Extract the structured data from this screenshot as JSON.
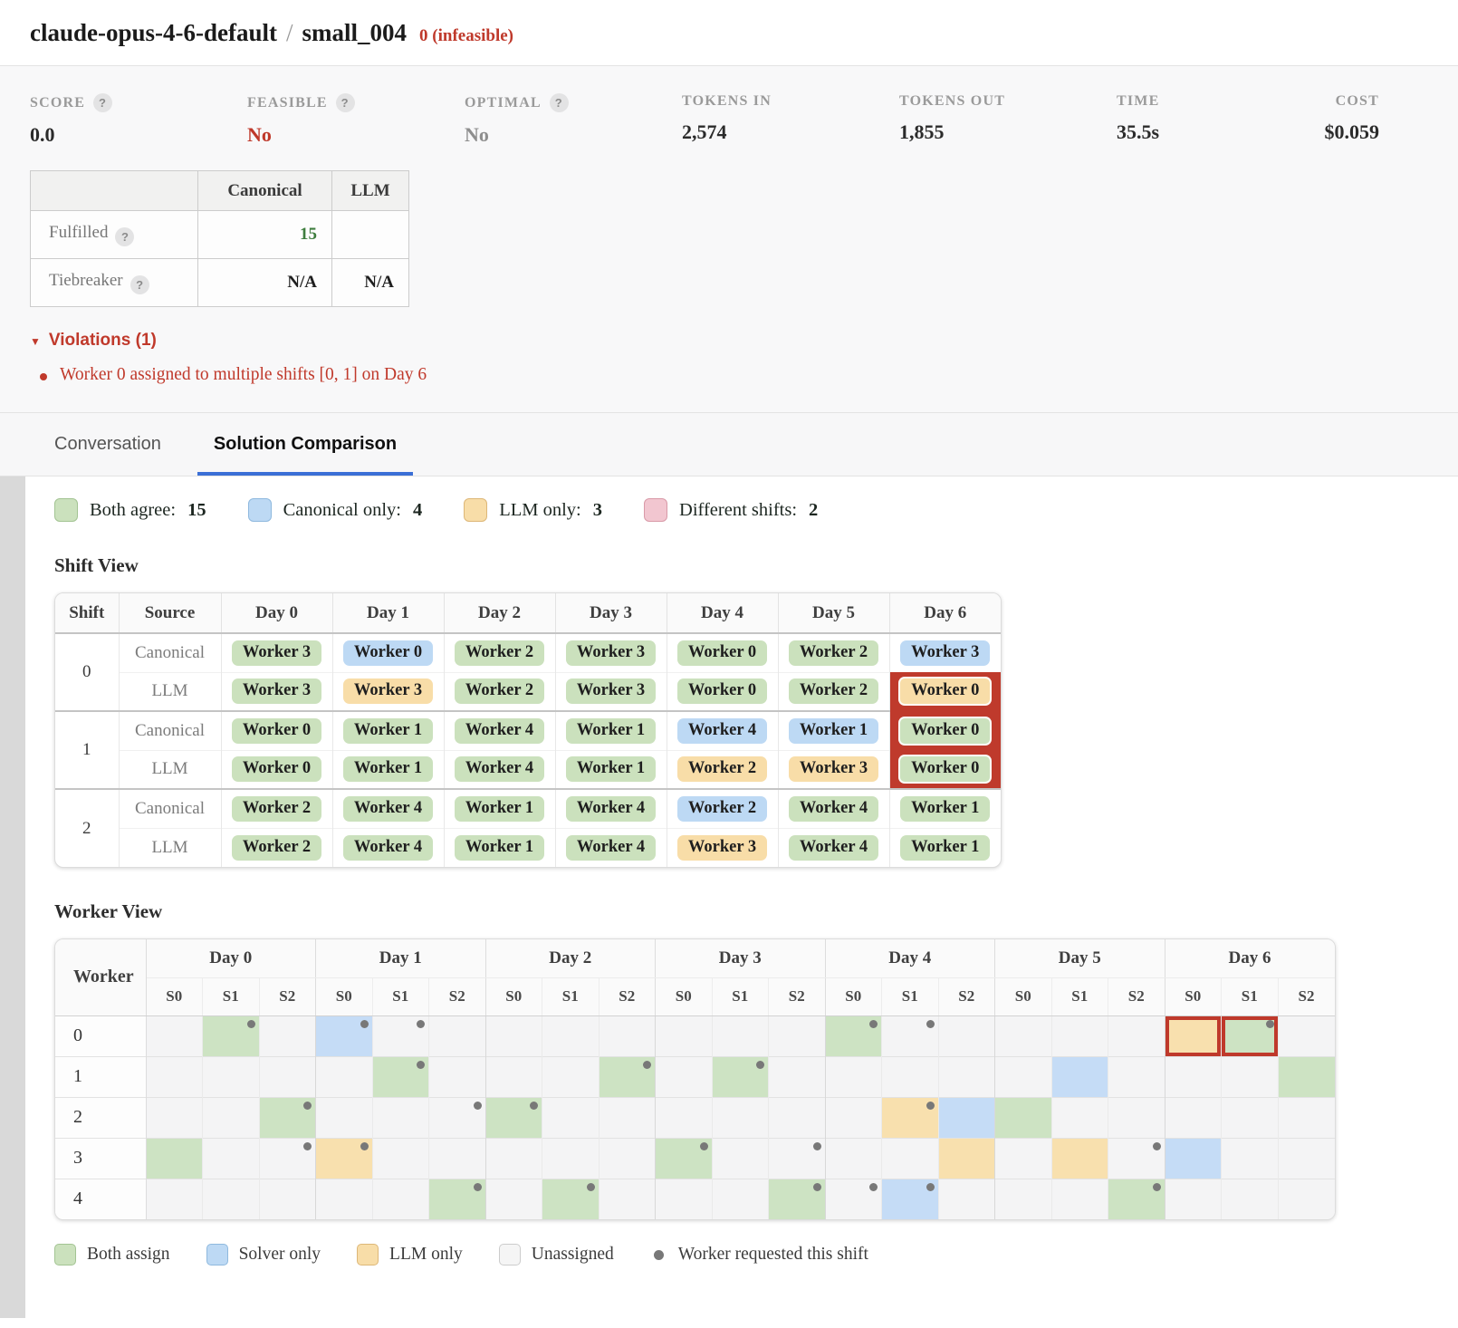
{
  "header": {
    "model": "claude-opus-4-6-default",
    "separator": "/",
    "task": "small_004",
    "status": "0 (infeasible)"
  },
  "stats": [
    {
      "label": "SCORE",
      "help": true,
      "value": "0.0",
      "style": "dark"
    },
    {
      "label": "FEASIBLE",
      "help": true,
      "value": "No",
      "style": "red"
    },
    {
      "label": "OPTIMAL",
      "help": true,
      "value": "No",
      "style": "muted"
    },
    {
      "label": "TOKENS IN",
      "help": false,
      "value": "2,574",
      "style": "dark"
    },
    {
      "label": "TOKENS OUT",
      "help": false,
      "value": "1,855",
      "style": "dark"
    },
    {
      "label": "TIME",
      "help": false,
      "value": "35.5s",
      "style": "dark"
    },
    {
      "label": "COST",
      "help": false,
      "value": "$0.059",
      "style": "dark"
    }
  ],
  "summary_table": {
    "columns": [
      "Canonical",
      "LLM"
    ],
    "rows": [
      {
        "label": "Fulfilled",
        "help": true,
        "canonical": "15",
        "canonical_style": "green",
        "llm": ""
      },
      {
        "label": "Tiebreaker",
        "help": true,
        "canonical": "N/A",
        "canonical_style": "dark",
        "llm": "N/A"
      }
    ]
  },
  "violations": {
    "title": "Violations (1)",
    "items": [
      "Worker 0 assigned to multiple shifts [0, 1] on Day 6"
    ]
  },
  "tabs": [
    {
      "label": "Conversation",
      "active": false
    },
    {
      "label": "Solution Comparison",
      "active": true
    }
  ],
  "legend_top": [
    {
      "label": "Both agree:",
      "count": "15",
      "color": "green"
    },
    {
      "label": "Canonical only:",
      "count": "4",
      "color": "blue"
    },
    {
      "label": "LLM only:",
      "count": "3",
      "color": "orange"
    },
    {
      "label": "Different shifts:",
      "count": "2",
      "color": "pink"
    }
  ],
  "colors": {
    "green": "#cbe1bd",
    "green_border": "#a3c493",
    "blue": "#bdd9f4",
    "blue_border": "#8fb9de",
    "orange": "#f8dda8",
    "orange_border": "#ddb778",
    "pink": "#f2c6d0",
    "pink_border": "#d99aa8",
    "empty": "#f5f5f5",
    "empty_border": "#cccccc",
    "violation_red": "#bf3a2c",
    "accent_blue": "#3b6fd6"
  },
  "shift_view": {
    "title": "Shift View",
    "columns": [
      "Shift",
      "Source",
      "Day 0",
      "Day 1",
      "Day 2",
      "Day 3",
      "Day 4",
      "Day 5",
      "Day 6"
    ],
    "shifts": [
      {
        "shift": "0",
        "rows": [
          {
            "source": "Canonical",
            "cells": [
              {
                "t": "Worker 3",
                "c": "g"
              },
              {
                "t": "Worker 0",
                "c": "b"
              },
              {
                "t": "Worker 2",
                "c": "g"
              },
              {
                "t": "Worker 3",
                "c": "g"
              },
              {
                "t": "Worker 0",
                "c": "g"
              },
              {
                "t": "Worker 2",
                "c": "g"
              },
              {
                "t": "Worker 3",
                "c": "b"
              }
            ]
          },
          {
            "source": "LLM",
            "cells": [
              {
                "t": "Worker 3",
                "c": "g"
              },
              {
                "t": "Worker 3",
                "c": "o"
              },
              {
                "t": "Worker 2",
                "c": "g"
              },
              {
                "t": "Worker 3",
                "c": "g"
              },
              {
                "t": "Worker 0",
                "c": "g"
              },
              {
                "t": "Worker 2",
                "c": "g"
              },
              {
                "t": "Worker 0",
                "c": "o",
                "v": 1
              }
            ]
          }
        ]
      },
      {
        "shift": "1",
        "rows": [
          {
            "source": "Canonical",
            "cells": [
              {
                "t": "Worker 0",
                "c": "g"
              },
              {
                "t": "Worker 1",
                "c": "g"
              },
              {
                "t": "Worker 4",
                "c": "g"
              },
              {
                "t": "Worker 1",
                "c": "g"
              },
              {
                "t": "Worker 4",
                "c": "b"
              },
              {
                "t": "Worker 1",
                "c": "b"
              },
              {
                "t": "Worker 0",
                "c": "g",
                "v": 1
              }
            ]
          },
          {
            "source": "LLM",
            "cells": [
              {
                "t": "Worker 0",
                "c": "g"
              },
              {
                "t": "Worker 1",
                "c": "g"
              },
              {
                "t": "Worker 4",
                "c": "g"
              },
              {
                "t": "Worker 1",
                "c": "g"
              },
              {
                "t": "Worker 2",
                "c": "o"
              },
              {
                "t": "Worker 3",
                "c": "o"
              },
              {
                "t": "Worker 0",
                "c": "g",
                "v": 1
              }
            ]
          }
        ]
      },
      {
        "shift": "2",
        "rows": [
          {
            "source": "Canonical",
            "cells": [
              {
                "t": "Worker 2",
                "c": "g"
              },
              {
                "t": "Worker 4",
                "c": "g"
              },
              {
                "t": "Worker 1",
                "c": "g"
              },
              {
                "t": "Worker 4",
                "c": "g"
              },
              {
                "t": "Worker 2",
                "c": "b"
              },
              {
                "t": "Worker 4",
                "c": "g"
              },
              {
                "t": "Worker 1",
                "c": "g"
              }
            ]
          },
          {
            "source": "LLM",
            "cells": [
              {
                "t": "Worker 2",
                "c": "g"
              },
              {
                "t": "Worker 4",
                "c": "g"
              },
              {
                "t": "Worker 1",
                "c": "g"
              },
              {
                "t": "Worker 4",
                "c": "g"
              },
              {
                "t": "Worker 3",
                "c": "o"
              },
              {
                "t": "Worker 4",
                "c": "g"
              },
              {
                "t": "Worker 1",
                "c": "g"
              }
            ]
          }
        ]
      }
    ]
  },
  "worker_view": {
    "title": "Worker View",
    "corner": "Worker",
    "days": [
      "Day 0",
      "Day 1",
      "Day 2",
      "Day 3",
      "Day 4",
      "Day 5",
      "Day 6"
    ],
    "shift_headers": [
      "S0",
      "S1",
      "S2"
    ],
    "workers": [
      {
        "id": "0",
        "cells": [
          {},
          {
            "s": "g",
            "d": 1
          },
          {},
          {
            "s": "b",
            "d": 1
          },
          {
            "d": 1
          },
          {},
          {},
          {},
          {},
          {},
          {},
          {},
          {
            "s": "g",
            "d": 1
          },
          {
            "d": 1
          },
          {},
          {},
          {},
          {},
          {
            "s": "o",
            "v": 1
          },
          {
            "s": "g",
            "d": 1,
            "v": 1
          },
          {}
        ]
      },
      {
        "id": "1",
        "cells": [
          {},
          {},
          {},
          {},
          {
            "s": "g",
            "d": 1
          },
          {},
          {},
          {},
          {
            "s": "g",
            "d": 1
          },
          {},
          {
            "s": "g",
            "d": 1
          },
          {},
          {},
          {},
          {},
          {},
          {
            "s": "b"
          },
          {},
          {},
          {},
          {
            "s": "g"
          }
        ]
      },
      {
        "id": "2",
        "cells": [
          {},
          {},
          {
            "s": "g",
            "d": 1
          },
          {},
          {},
          {
            "d": 1
          },
          {
            "s": "g",
            "d": 1
          },
          {},
          {},
          {},
          {},
          {},
          {},
          {
            "s": "o",
            "d": 1
          },
          {
            "s": "b"
          },
          {
            "s": "g"
          },
          {},
          {},
          {},
          {},
          {}
        ]
      },
      {
        "id": "3",
        "cells": [
          {
            "s": "g"
          },
          {},
          {
            "d": 1
          },
          {
            "s": "o",
            "d": 1
          },
          {},
          {},
          {},
          {},
          {},
          {
            "s": "g",
            "d": 1
          },
          {},
          {
            "d": 1
          },
          {},
          {},
          {
            "s": "o"
          },
          {},
          {
            "s": "o"
          },
          {
            "d": 1
          },
          {
            "s": "b"
          },
          {},
          {}
        ]
      },
      {
        "id": "4",
        "cells": [
          {},
          {},
          {},
          {},
          {},
          {
            "s": "g",
            "d": 1
          },
          {},
          {
            "s": "g",
            "d": 1
          },
          {},
          {},
          {},
          {
            "s": "g",
            "d": 1
          },
          {
            "d": 1
          },
          {
            "s": "b",
            "d": 1
          },
          {},
          {},
          {},
          {
            "s": "g",
            "d": 1
          },
          {},
          {},
          {}
        ]
      }
    ]
  },
  "legend_bottom": [
    {
      "label": "Both assign",
      "swatch": "green"
    },
    {
      "label": "Solver only",
      "swatch": "blue"
    },
    {
      "label": "LLM only",
      "swatch": "orange"
    },
    {
      "label": "Unassigned",
      "swatch": "empty"
    },
    {
      "label": "Worker requested this shift",
      "swatch": "dot"
    }
  ]
}
